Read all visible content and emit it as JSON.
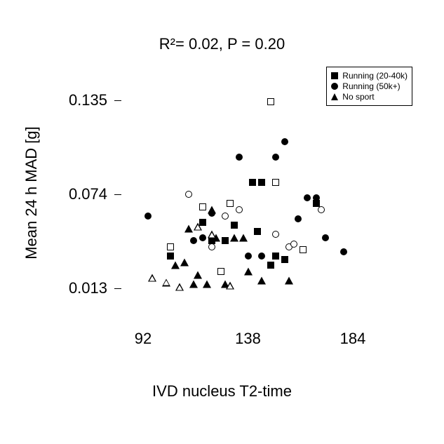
{
  "chart": {
    "type": "scatter",
    "title": "R²= 0.02, P = 0.20",
    "title_fontsize": 22,
    "xlabel": "IVD nucleus T2-time",
    "ylabel": "Mean 24 h MAD [g]",
    "label_fontsize": 22,
    "xlim": [
      80,
      200
    ],
    "ylim": [
      0.0,
      0.15
    ],
    "xticks": [
      92,
      138,
      184
    ],
    "yticks": [
      0.013,
      0.074,
      0.135
    ],
    "ytick_labels": [
      "0.013",
      "0.074",
      "0.135"
    ],
    "xtick_labels": [
      "92",
      "138",
      "184"
    ],
    "background_color": "#ffffff",
    "text_color": "#000000",
    "marker_size": 10,
    "legend": {
      "position": "upper-right",
      "border_color": "#000000",
      "fontsize": 12,
      "items": [
        {
          "label": "Running (20-40k)",
          "marker": "square-filled"
        },
        {
          "label": "Running (50k+)",
          "marker": "circle-filled"
        },
        {
          "label": "No sport",
          "marker": "tri-filled"
        }
      ]
    },
    "series": [
      {
        "name": "Running (20-40k) filled",
        "marker": "square-filled",
        "color": "#000000",
        "points": [
          [
            104,
            0.034
          ],
          [
            122,
            0.044
          ],
          [
            128,
            0.044
          ],
          [
            132,
            0.054
          ],
          [
            140,
            0.082
          ],
          [
            144,
            0.082
          ],
          [
            142,
            0.05
          ],
          [
            148,
            0.028
          ],
          [
            150,
            0.034
          ],
          [
            154,
            0.032
          ],
          [
            168,
            0.068
          ],
          [
            118,
            0.056
          ]
        ]
      },
      {
        "name": "Running (20-40k) open",
        "marker": "square-open",
        "color": "#000000",
        "points": [
          [
            118,
            0.066
          ],
          [
            130,
            0.068
          ],
          [
            126,
            0.024
          ],
          [
            148,
            0.134
          ],
          [
            150,
            0.082
          ],
          [
            162,
            0.038
          ],
          [
            104,
            0.04
          ]
        ]
      },
      {
        "name": "Running (50k+) filled",
        "marker": "circle-filled",
        "color": "#000000",
        "points": [
          [
            94,
            0.06
          ],
          [
            114,
            0.044
          ],
          [
            118,
            0.046
          ],
          [
            122,
            0.062
          ],
          [
            134,
            0.098
          ],
          [
            150,
            0.098
          ],
          [
            138,
            0.034
          ],
          [
            144,
            0.034
          ],
          [
            154,
            0.108
          ],
          [
            160,
            0.058
          ],
          [
            164,
            0.072
          ],
          [
            168,
            0.072
          ],
          [
            172,
            0.046
          ],
          [
            180,
            0.037
          ]
        ]
      },
      {
        "name": "Running (50k+) open",
        "marker": "circle-open",
        "color": "#000000",
        "points": [
          [
            112,
            0.074
          ],
          [
            122,
            0.04
          ],
          [
            128,
            0.06
          ],
          [
            134,
            0.064
          ],
          [
            150,
            0.048
          ],
          [
            156,
            0.04
          ],
          [
            158,
            0.042
          ],
          [
            170,
            0.064
          ]
        ]
      },
      {
        "name": "No sport filled",
        "marker": "tri-filled",
        "color": "#000000",
        "points": [
          [
            106,
            0.028
          ],
          [
            110,
            0.03
          ],
          [
            112,
            0.052
          ],
          [
            116,
            0.022
          ],
          [
            114,
            0.016
          ],
          [
            120,
            0.016
          ],
          [
            124,
            0.046
          ],
          [
            128,
            0.016
          ],
          [
            132,
            0.046
          ],
          [
            136,
            0.046
          ],
          [
            138,
            0.024
          ],
          [
            144,
            0.018
          ],
          [
            156,
            0.018
          ],
          [
            122,
            0.064
          ]
        ]
      },
      {
        "name": "No sport open",
        "marker": "tri-open",
        "color": "#000000",
        "points": [
          [
            96,
            0.02
          ],
          [
            102,
            0.022
          ],
          [
            108,
            0.024
          ],
          [
            116,
            0.068
          ],
          [
            122,
            0.068
          ],
          [
            130,
            0.04
          ]
        ]
      }
    ]
  }
}
